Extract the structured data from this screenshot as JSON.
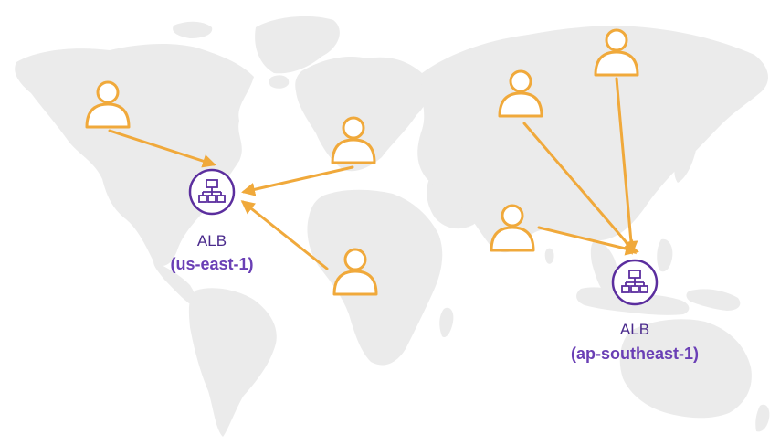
{
  "diagram": {
    "load_balancers": [
      {
        "id": "lb-us-east-1",
        "name": "ALB",
        "region": "(us-east-1)"
      },
      {
        "id": "lb-ap-southeast-1",
        "name": "ALB",
        "region": "(ap-southeast-1)"
      }
    ],
    "users": [
      {
        "id": "user-north-america",
        "target": "lb-us-east-1"
      },
      {
        "id": "user-europe",
        "target": "lb-us-east-1"
      },
      {
        "id": "user-africa",
        "target": "lb-us-east-1"
      },
      {
        "id": "user-russia",
        "target": "lb-ap-southeast-1"
      },
      {
        "id": "user-northeast-asia",
        "target": "lb-ap-southeast-1"
      },
      {
        "id": "user-india",
        "target": "lb-ap-southeast-1"
      }
    ],
    "colors": {
      "user": "#f0a93b",
      "arrow": "#f0a93b",
      "load_balancer": "#5b2e9e",
      "lb_label": "#4a2a8c",
      "region_label": "#6a3fb5",
      "map": "#ebebeb"
    },
    "icons": {
      "user": "user-icon",
      "load_balancer": "load-balancer-icon",
      "map": "world-map-background"
    }
  }
}
